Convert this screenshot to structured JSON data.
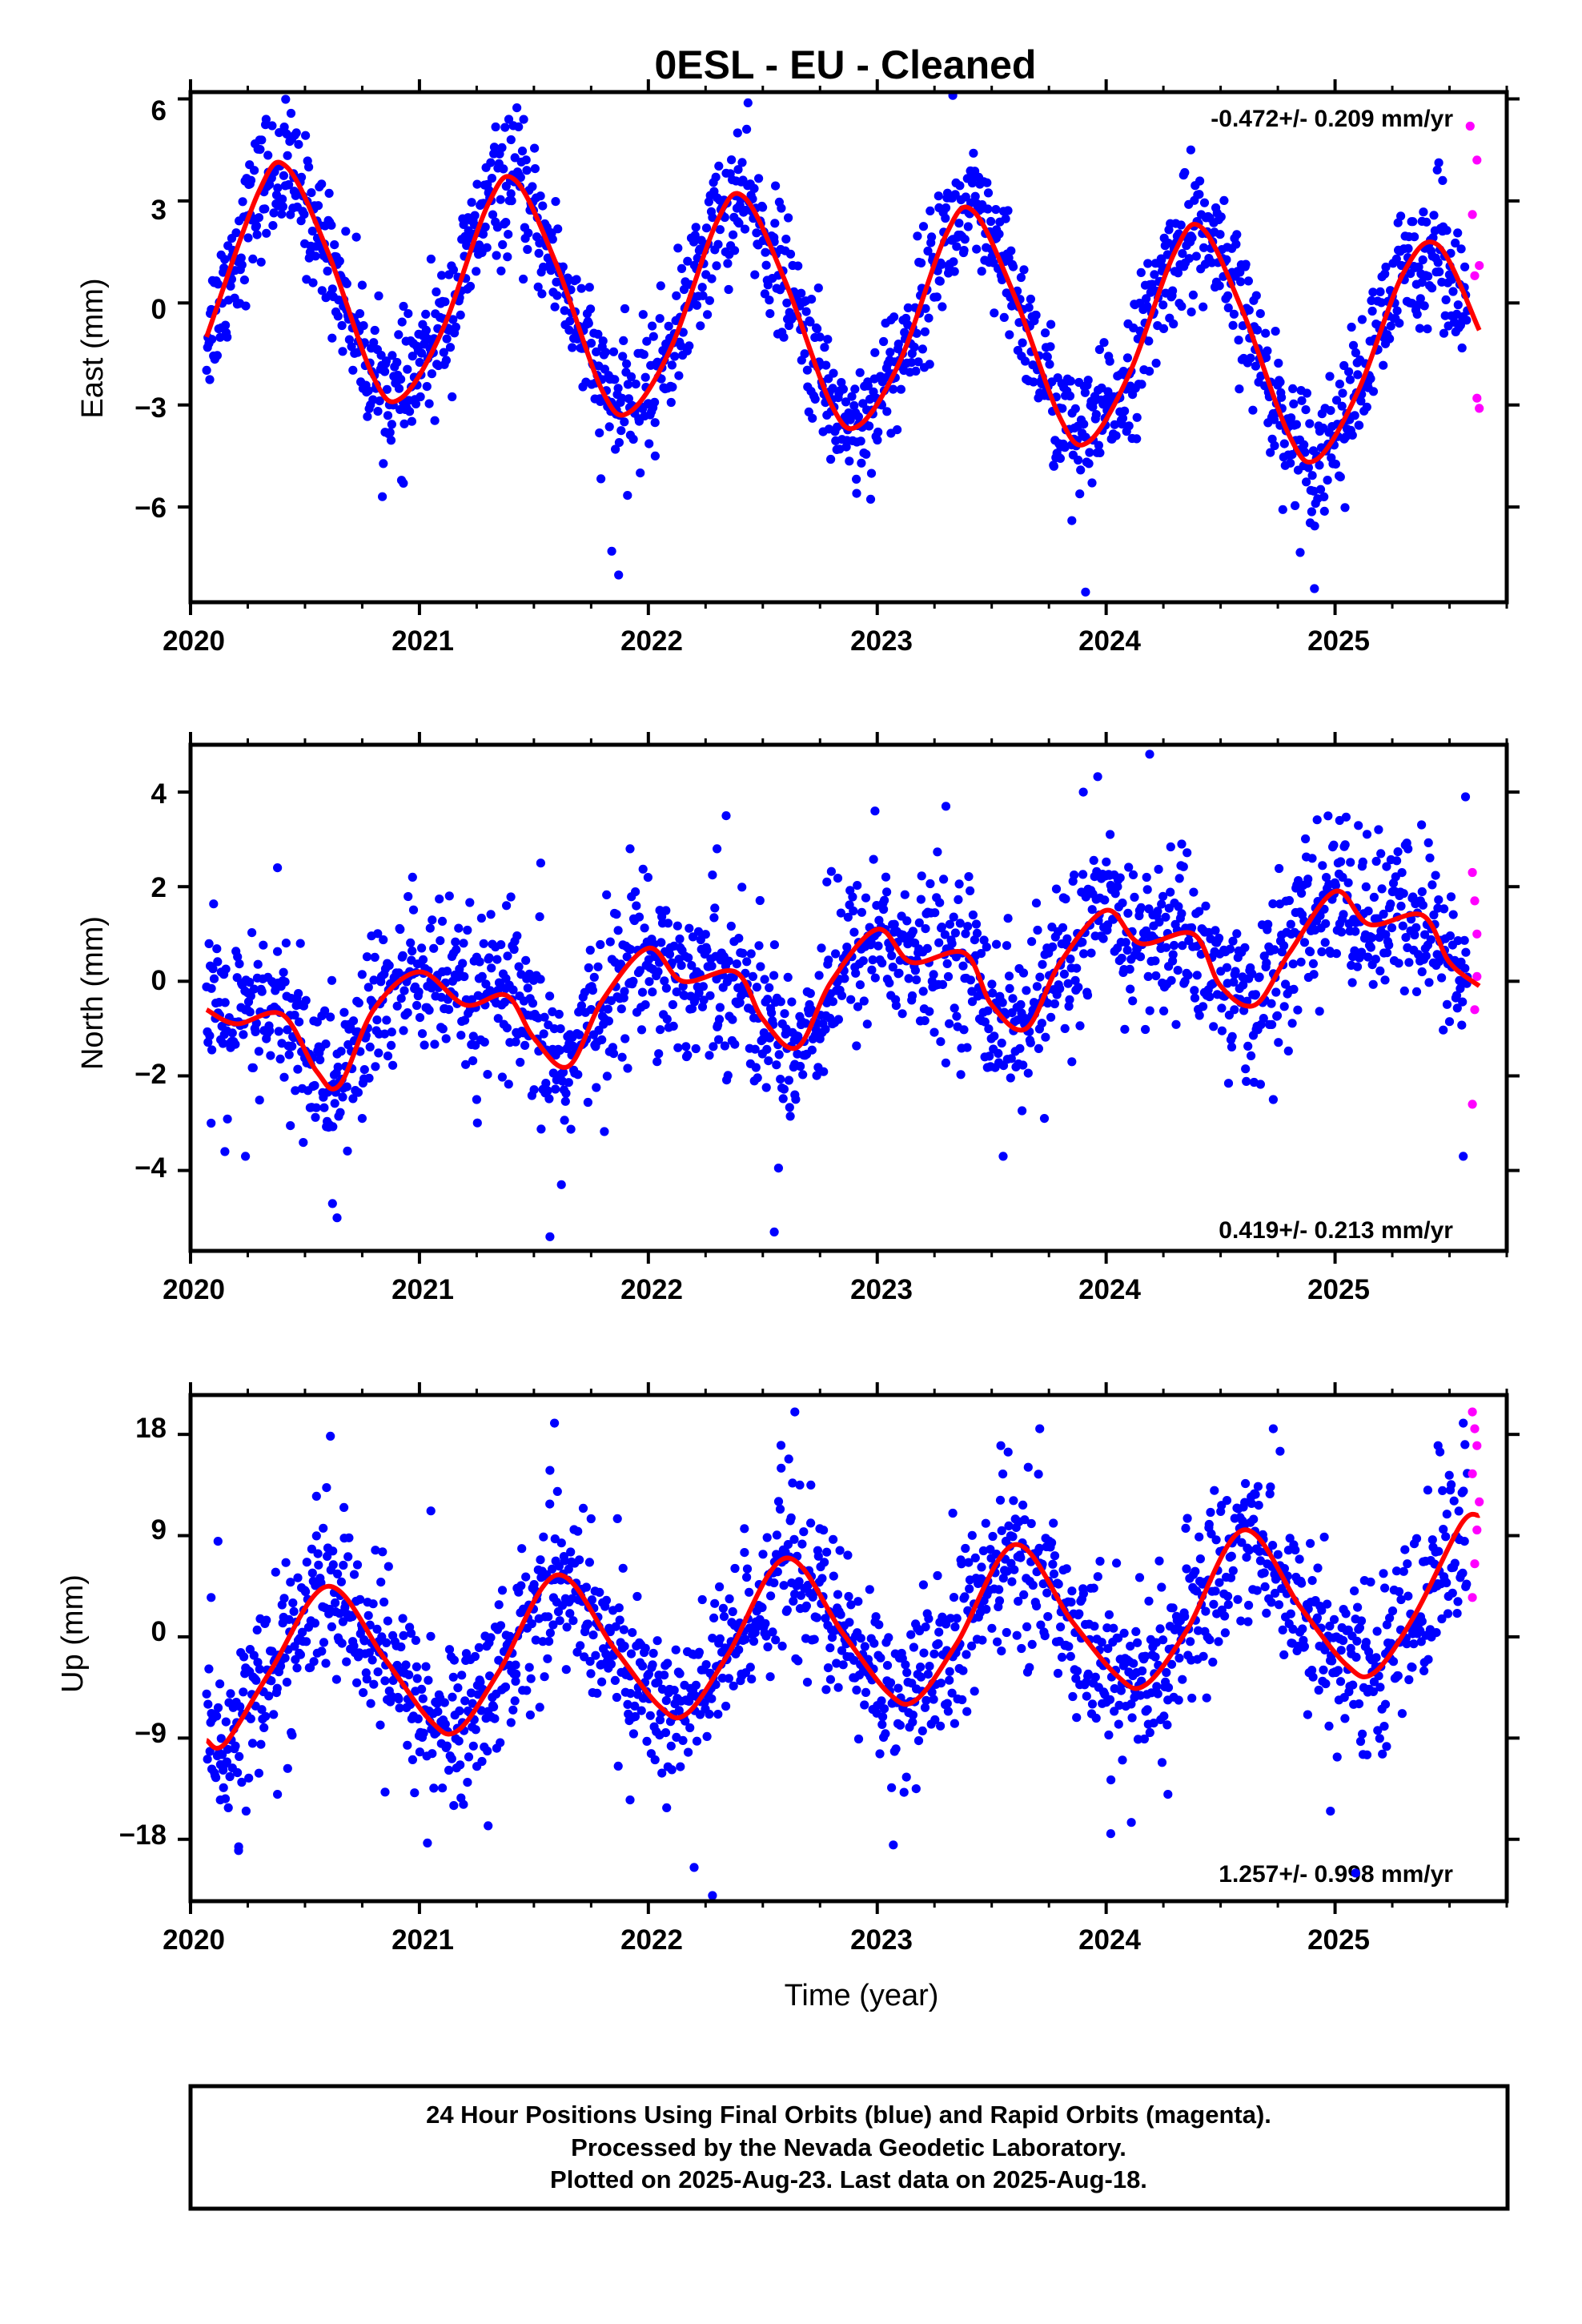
{
  "title": "0ESL  - EU - Cleaned",
  "footer": {
    "lines": [
      "24 Hour Positions Using Final Orbits (blue) and Rapid Orbits (magenta).",
      "Processed by the Nevada Geodetic Laboratory.",
      "Plotted on 2025-Aug-23. Last data on 2025-Aug-18."
    ]
  },
  "colors": {
    "final_orbits": "#0000ff",
    "rapid_orbits": "#ff00ff",
    "model": "#ff0000",
    "axes": "#000000"
  },
  "chart_data": [
    {
      "type": "scatter",
      "panel": "east",
      "ylabel": "East (mm)",
      "xlabel": "",
      "xlim": [
        2020.0,
        2025.75
      ],
      "ylim": [
        -8.8,
        6.2
      ],
      "xticks": [
        2020,
        2021,
        2022,
        2023,
        2024,
        2025
      ],
      "xtick_labels": [
        "2020",
        "2021",
        "2022",
        "2023",
        "2024",
        "2025"
      ],
      "yticks": [
        6,
        3,
        0,
        -3,
        -6
      ],
      "ytick_labels": [
        "6",
        "3",
        "0",
        "−3",
        "−6"
      ],
      "rate_text": "-0.472+/- 0.209 mm/yr",
      "rate_position": "top-right",
      "final_data_range": [
        2020.07,
        2025.58
      ],
      "rapid_data_range": [
        2025.58,
        2025.63
      ],
      "model": {
        "name": "fit",
        "x": [
          2020.07,
          2020.3,
          2020.42,
          2020.6,
          2020.8,
          2020.92,
          2021.1,
          2021.3,
          2021.42,
          2021.6,
          2021.8,
          2021.92,
          2022.1,
          2022.3,
          2022.42,
          2022.6,
          2022.8,
          2022.92,
          2023.1,
          2023.3,
          2023.42,
          2023.6,
          2023.8,
          2023.92,
          2024.1,
          2024.3,
          2024.42,
          2024.6,
          2024.8,
          2024.92,
          2025.1,
          2025.3,
          2025.45,
          2025.63
        ],
        "y": [
          -1.0,
          3.3,
          4.0,
          1.5,
          -2.2,
          -2.8,
          -0.8,
          2.9,
          3.6,
          1.1,
          -2.6,
          -3.2,
          -1.3,
          2.4,
          3.1,
          0.6,
          -3.0,
          -3.6,
          -1.7,
          2.0,
          2.7,
          0.2,
          -3.4,
          -4.1,
          -2.1,
          1.5,
          2.2,
          -0.3,
          -3.9,
          -4.6,
          -2.6,
          0.9,
          1.7,
          -0.8
        ]
      },
      "final_points": [
        {
          "x": 2020.18,
          "y": 1.9
        },
        {
          "x": 2020.26,
          "y": 3.5
        },
        {
          "x": 2020.33,
          "y": 5.4
        },
        {
          "x": 2020.45,
          "y": 3.8
        },
        {
          "x": 2020.62,
          "y": 1.2
        },
        {
          "x": 2020.85,
          "y": -3.8
        },
        {
          "x": 2020.93,
          "y": -5.3
        },
        {
          "x": 2021.05,
          "y": -1.5
        },
        {
          "x": 2021.24,
          "y": 2.3
        },
        {
          "x": 2021.4,
          "y": 4.8
        },
        {
          "x": 2021.56,
          "y": 2.0
        },
        {
          "x": 2021.79,
          "y": -2.9
        },
        {
          "x": 2021.84,
          "y": -7.3
        },
        {
          "x": 2021.87,
          "y": -8.0
        },
        {
          "x": 2022.03,
          "y": -4.5
        },
        {
          "x": 2022.21,
          "y": 1.0
        },
        {
          "x": 2022.39,
          "y": 5.0
        },
        {
          "x": 2022.55,
          "y": 1.8
        },
        {
          "x": 2022.78,
          "y": -3.3
        },
        {
          "x": 2022.91,
          "y": -5.6
        },
        {
          "x": 2023.06,
          "y": -0.5
        },
        {
          "x": 2023.27,
          "y": 2.8
        },
        {
          "x": 2023.33,
          "y": 6.1
        },
        {
          "x": 2023.52,
          "y": 1.9
        },
        {
          "x": 2023.74,
          "y": -2.5
        },
        {
          "x": 2023.85,
          "y": -6.4
        },
        {
          "x": 2023.91,
          "y": -8.5
        },
        {
          "x": 2024.06,
          "y": -3.2
        },
        {
          "x": 2024.24,
          "y": 1.3
        },
        {
          "x": 2024.37,
          "y": 4.5
        },
        {
          "x": 2024.55,
          "y": 0.9
        },
        {
          "x": 2024.76,
          "y": -3.6
        },
        {
          "x": 2024.91,
          "y": -8.4
        },
        {
          "x": 2025.04,
          "y": -4.0
        },
        {
          "x": 2025.22,
          "y": -1.2
        },
        {
          "x": 2025.38,
          "y": 2.4
        },
        {
          "x": 2025.47,
          "y": 3.6
        },
        {
          "x": 2025.56,
          "y": -0.4
        }
      ],
      "rapid_points": [
        {
          "x": 2025.59,
          "y": 5.2
        },
        {
          "x": 2025.6,
          "y": 2.6
        },
        {
          "x": 2025.61,
          "y": 0.8
        },
        {
          "x": 2025.62,
          "y": 4.2
        },
        {
          "x": 2025.62,
          "y": -2.8
        },
        {
          "x": 2025.63,
          "y": -3.1
        },
        {
          "x": 2025.63,
          "y": 1.1
        }
      ]
    },
    {
      "type": "scatter",
      "panel": "north",
      "ylabel": "North (mm)",
      "xlabel": "",
      "xlim": [
        2020.0,
        2025.75
      ],
      "ylim": [
        -5.7,
        5.0
      ],
      "xticks": [
        2020,
        2021,
        2022,
        2023,
        2024,
        2025
      ],
      "xtick_labels": [
        "2020",
        "2021",
        "2022",
        "2023",
        "2024",
        "2025"
      ],
      "yticks": [
        4,
        2,
        0,
        -2,
        -4
      ],
      "ytick_labels": [
        "4",
        "2",
        "0",
        "−2",
        "−4"
      ],
      "rate_text": "0.419+/- 0.213 mm/yr",
      "rate_position": "bottom-right",
      "final_data_range": [
        2020.07,
        2025.58
      ],
      "rapid_data_range": [
        2025.58,
        2025.63
      ],
      "model": {
        "name": "fit",
        "x": [
          2020.07,
          2020.2,
          2020.4,
          2020.55,
          2020.65,
          2020.8,
          2021.0,
          2021.2,
          2021.38,
          2021.5,
          2021.65,
          2021.8,
          2022.0,
          2022.15,
          2022.38,
          2022.5,
          2022.65,
          2022.8,
          2023.0,
          2023.15,
          2023.38,
          2023.5,
          2023.65,
          2023.8,
          2024.0,
          2024.15,
          2024.38,
          2024.5,
          2024.65,
          2024.8,
          2025.0,
          2025.15,
          2025.38,
          2025.5,
          2025.63
        ],
        "y": [
          -0.6,
          -0.9,
          -0.7,
          -1.9,
          -2.2,
          -0.6,
          0.2,
          -0.5,
          -0.3,
          -1.2,
          -1.8,
          -0.4,
          0.7,
          0.0,
          0.2,
          -0.8,
          -1.4,
          0.0,
          1.1,
          0.4,
          0.6,
          -0.5,
          -1.0,
          0.4,
          1.5,
          0.8,
          1.0,
          -0.1,
          -0.5,
          0.6,
          1.9,
          1.2,
          1.4,
          0.4,
          -0.1
        ]
      },
      "final_points": [
        {
          "x": 2020.09,
          "y": -3.0
        },
        {
          "x": 2020.15,
          "y": -3.6
        },
        {
          "x": 2020.24,
          "y": -3.7
        },
        {
          "x": 2020.38,
          "y": 2.4
        },
        {
          "x": 2020.48,
          "y": 0.8
        },
        {
          "x": 2020.62,
          "y": -4.7
        },
        {
          "x": 2020.64,
          "y": -5.0
        },
        {
          "x": 2020.75,
          "y": -2.9
        },
        {
          "x": 2020.97,
          "y": 2.2
        },
        {
          "x": 2021.1,
          "y": 0.2
        },
        {
          "x": 2021.25,
          "y": -2.5
        },
        {
          "x": 2021.38,
          "y": 1.6
        },
        {
          "x": 2021.53,
          "y": 2.5
        },
        {
          "x": 2021.62,
          "y": -4.3
        },
        {
          "x": 2021.57,
          "y": -5.4
        },
        {
          "x": 2021.92,
          "y": 2.8
        },
        {
          "x": 2022.05,
          "y": 1.5
        },
        {
          "x": 2022.3,
          "y": 2.8
        },
        {
          "x": 2022.34,
          "y": 3.5
        },
        {
          "x": 2022.53,
          "y": -1.2
        },
        {
          "x": 2022.55,
          "y": -5.3
        },
        {
          "x": 2022.64,
          "y": -2.4
        },
        {
          "x": 2022.78,
          "y": 2.1
        },
        {
          "x": 2022.99,
          "y": 3.6
        },
        {
          "x": 2023.15,
          "y": 1.0
        },
        {
          "x": 2023.3,
          "y": 3.7
        },
        {
          "x": 2023.47,
          "y": -1.6
        },
        {
          "x": 2023.55,
          "y": -3.7
        },
        {
          "x": 2023.73,
          "y": -2.9
        },
        {
          "x": 2023.9,
          "y": 4.0
        },
        {
          "x": 2024.05,
          "y": 2.0
        },
        {
          "x": 2024.19,
          "y": 4.8
        },
        {
          "x": 2024.33,
          "y": 2.9
        },
        {
          "x": 2024.56,
          "y": -0.6
        },
        {
          "x": 2024.73,
          "y": -2.5
        },
        {
          "x": 2024.9,
          "y": 2.6
        },
        {
          "x": 2025.02,
          "y": 3.4
        },
        {
          "x": 2025.2,
          "y": 2.7
        },
        {
          "x": 2025.38,
          "y": 0.2
        },
        {
          "x": 2025.57,
          "y": 3.9
        },
        {
          "x": 2025.56,
          "y": -3.7
        }
      ],
      "rapid_points": [
        {
          "x": 2025.6,
          "y": 2.3
        },
        {
          "x": 2025.61,
          "y": 1.7
        },
        {
          "x": 2025.62,
          "y": 0.1
        },
        {
          "x": 2025.61,
          "y": -0.6
        },
        {
          "x": 2025.6,
          "y": -2.6
        },
        {
          "x": 2025.62,
          "y": 1.0
        }
      ]
    },
    {
      "type": "scatter",
      "panel": "up",
      "ylabel": "Up (mm)",
      "xlabel": "Time (year)",
      "xlim": [
        2020.0,
        2025.75
      ],
      "ylim": [
        -23.5,
        21.5
      ],
      "xticks": [
        2020,
        2021,
        2022,
        2023,
        2024,
        2025
      ],
      "xtick_labels": [
        "2020",
        "2021",
        "2022",
        "2023",
        "2024",
        "2025"
      ],
      "yticks": [
        18,
        9,
        0,
        -9,
        -18
      ],
      "ytick_labels": [
        "18",
        "9",
        "0",
        "−9",
        "−18"
      ],
      "rate_text": "1.257+/- 0.998 mm/yr",
      "rate_position": "bottom-right",
      "final_data_range": [
        2020.07,
        2025.58
      ],
      "rapid_data_range": [
        2025.58,
        2025.63
      ],
      "model": {
        "name": "fit",
        "x": [
          2020.07,
          2020.15,
          2020.35,
          2020.6,
          2020.85,
          2021.05,
          2021.17,
          2021.35,
          2021.6,
          2021.85,
          2022.05,
          2022.17,
          2022.35,
          2022.6,
          2022.85,
          2023.05,
          2023.17,
          2023.35,
          2023.6,
          2023.85,
          2024.05,
          2024.17,
          2024.35,
          2024.6,
          2024.85,
          2025.05,
          2025.17,
          2025.35,
          2025.55,
          2025.63
        ],
        "y": [
          -9.2,
          -9.5,
          -3.0,
          4.5,
          -2.0,
          -7.5,
          -8.3,
          -3.0,
          5.5,
          -1.0,
          -6.2,
          -6.8,
          -1.5,
          7.0,
          0.3,
          -5.0,
          -5.6,
          -0.5,
          8.2,
          1.4,
          -3.5,
          -4.3,
          0.5,
          9.5,
          2.6,
          -2.5,
          -3.2,
          2.0,
          10.0,
          10.8
        ]
      },
      "final_points": [
        {
          "x": 2020.09,
          "y": 3.5
        },
        {
          "x": 2020.12,
          "y": 8.5
        },
        {
          "x": 2020.13,
          "y": -14.5
        },
        {
          "x": 2020.21,
          "y": -19.0
        },
        {
          "x": 2020.38,
          "y": -14.0
        },
        {
          "x": 2020.55,
          "y": 12.5
        },
        {
          "x": 2020.67,
          "y": 11.5
        },
        {
          "x": 2020.85,
          "y": -13.8
        },
        {
          "x": 2021.05,
          "y": 11.2
        },
        {
          "x": 2021.15,
          "y": -15.0
        },
        {
          "x": 2021.3,
          "y": -16.8
        },
        {
          "x": 2021.42,
          "y": -2.5
        },
        {
          "x": 2021.57,
          "y": 14.8
        },
        {
          "x": 2021.59,
          "y": 19.0
        },
        {
          "x": 2021.75,
          "y": 10.5
        },
        {
          "x": 2021.92,
          "y": -14.5
        },
        {
          "x": 2022.08,
          "y": -15.2
        },
        {
          "x": 2022.2,
          "y": -20.5
        },
        {
          "x": 2022.28,
          "y": -23.0
        },
        {
          "x": 2022.42,
          "y": 7.5
        },
        {
          "x": 2022.58,
          "y": 15.0
        },
        {
          "x": 2022.64,
          "y": 20.0
        },
        {
          "x": 2022.71,
          "y": 13.5
        },
        {
          "x": 2022.83,
          "y": -4.5
        },
        {
          "x": 2023.07,
          "y": -18.5
        },
        {
          "x": 2023.17,
          "y": -13.5
        },
        {
          "x": 2023.33,
          "y": 11.0
        },
        {
          "x": 2023.54,
          "y": 17.0
        },
        {
          "x": 2023.71,
          "y": 18.5
        },
        {
          "x": 2023.82,
          "y": 3.0
        },
        {
          "x": 2024.02,
          "y": -17.5
        },
        {
          "x": 2024.11,
          "y": -16.5
        },
        {
          "x": 2024.27,
          "y": -14.0
        },
        {
          "x": 2024.45,
          "y": 10.0
        },
        {
          "x": 2024.73,
          "y": 18.5
        },
        {
          "x": 2024.76,
          "y": 16.5
        },
        {
          "x": 2024.98,
          "y": -15.5
        },
        {
          "x": 2025.09,
          "y": -21.0
        },
        {
          "x": 2025.22,
          "y": -6.0
        },
        {
          "x": 2025.45,
          "y": 17.0
        },
        {
          "x": 2025.56,
          "y": 19.0
        }
      ],
      "rapid_points": [
        {
          "x": 2025.6,
          "y": 20.0
        },
        {
          "x": 2025.61,
          "y": 18.5
        },
        {
          "x": 2025.62,
          "y": 17.0
        },
        {
          "x": 2025.6,
          "y": 14.5
        },
        {
          "x": 2025.63,
          "y": 12.0
        },
        {
          "x": 2025.62,
          "y": 9.5
        },
        {
          "x": 2025.61,
          "y": 6.5
        },
        {
          "x": 2025.6,
          "y": 3.5
        }
      ]
    }
  ]
}
